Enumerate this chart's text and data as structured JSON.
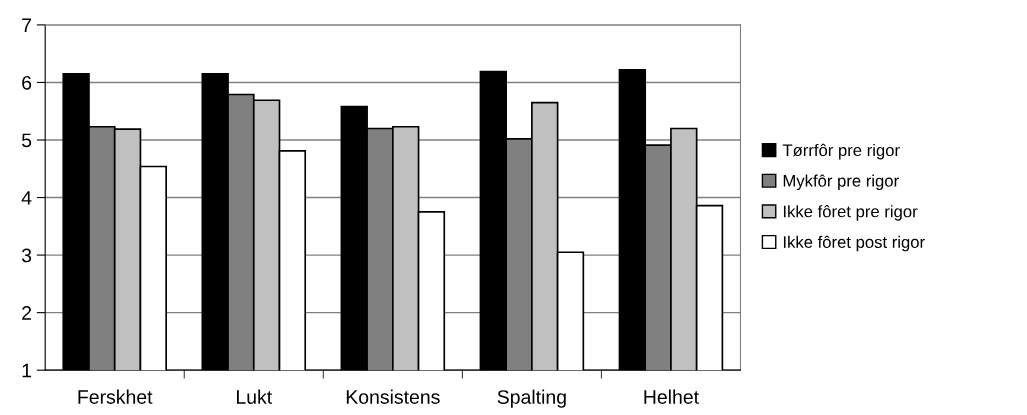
{
  "chart_data": {
    "type": "bar",
    "categories": [
      "Ferskhet",
      "Lukt",
      "Konsistens",
      "Spalting",
      "Helhet"
    ],
    "series": [
      {
        "name": "Tørrfôr pre rigor",
        "color": "#000000",
        "values": [
          6.15,
          6.15,
          5.58,
          6.19,
          6.22
        ]
      },
      {
        "name": "Mykfôr pre rigor",
        "color": "#808080",
        "values": [
          5.23,
          5.79,
          5.2,
          5.02,
          4.91
        ]
      },
      {
        "name": "Ikke fôret pre rigor",
        "color": "#c0c0c0",
        "values": [
          5.19,
          5.69,
          5.23,
          5.65,
          5.2
        ]
      },
      {
        "name": "Ikke fôret post rigor",
        "color": "#ffffff",
        "values": [
          4.54,
          4.81,
          3.75,
          3.05,
          3.86
        ]
      }
    ],
    "ylim": [
      1,
      7
    ],
    "yticks": [
      1,
      2,
      3,
      4,
      5,
      6,
      7
    ],
    "grid": "y",
    "legend": "right"
  }
}
